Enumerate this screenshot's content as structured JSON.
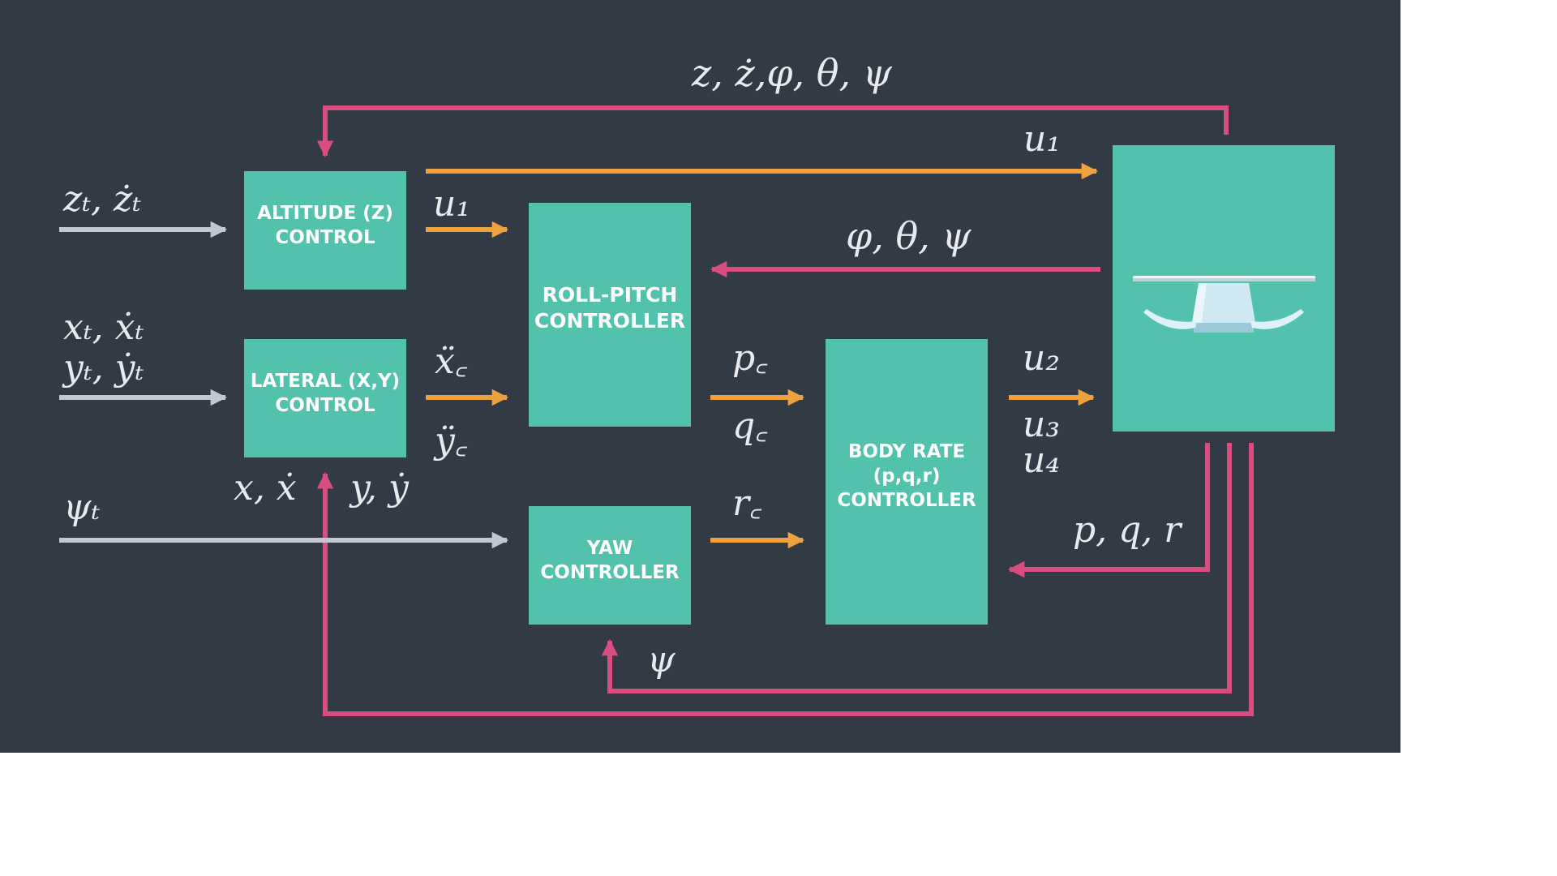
{
  "colors": {
    "background": "#323a46",
    "block": "#52c2ac",
    "feedback_arrow": "#d94d80",
    "command_arrow": "#eea23e",
    "input_arrow": "#c3c8d0",
    "page": "#ffffff"
  },
  "blocks": {
    "altitude": {
      "line1": "ALTITUDE (Z)",
      "line2": "CONTROL"
    },
    "lateral": {
      "line1": "LATERAL (X,Y)",
      "line2": "CONTROL"
    },
    "roll_pitch": {
      "line1": "ROLL-PITCH",
      "line2": "CONTROLLER"
    },
    "yaw": {
      "line1": "YAW",
      "line2": "CONTROLLER"
    },
    "body_rate": {
      "line1": "BODY RATE",
      "line2": "(p,q,r)",
      "line3": "CONTROLLER"
    },
    "drone": {
      "icon": "quadcopter-icon"
    }
  },
  "labels": {
    "feedback_top": "z, ż,φ, θ, ψ",
    "u1_top": "u₁",
    "ref_altitude": "zₜ, żₜ",
    "u1_mid": "u₁",
    "attitude_feedback": "φ, θ, ψ",
    "ref_xt": "xₜ, ẋₜ",
    "ref_yt": "yₜ, ẏₜ",
    "xc_ddot": "ẍ꜀",
    "yc_ddot": "ÿ꜀",
    "pc": "p꜀",
    "qc": "q꜀",
    "u2": "u₂",
    "u3": "u₃",
    "u4": "u₄",
    "x_xdot": "x, ẋ",
    "y_ydot": "y, ẏ",
    "ref_psi": "ψₜ",
    "rc": "r꜀",
    "pqr": "p, q, r",
    "psi_feedback": "ψ"
  }
}
